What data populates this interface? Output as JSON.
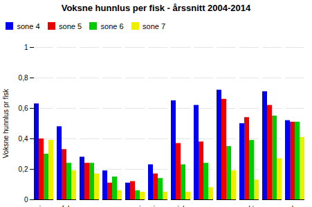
{
  "chart_data": {
    "type": "bar",
    "title": "Voksne hunnlus per fisk - årssnitt 2004-2014",
    "ylabel": "Voksne hunnlus pr fisk",
    "categories": [
      "jan",
      "feb",
      "mar",
      "apr",
      "mai",
      "jun",
      "jul",
      "aug",
      "sep",
      "okt",
      "nov",
      "des"
    ],
    "series": [
      {
        "name": "sone 4",
        "color": "#0000EE",
        "values": [
          0.63,
          0.48,
          0.28,
          0.19,
          0.11,
          0.23,
          0.65,
          0.62,
          0.72,
          0.5,
          0.71,
          0.52
        ]
      },
      {
        "name": "sone 5",
        "color": "#EE0000",
        "values": [
          0.4,
          0.33,
          0.24,
          0.11,
          0.12,
          0.17,
          0.37,
          0.38,
          0.66,
          0.54,
          0.62,
          0.51
        ]
      },
      {
        "name": "sone 6",
        "color": "#00CC00",
        "values": [
          0.3,
          0.24,
          0.24,
          0.15,
          0.06,
          0.14,
          0.23,
          0.24,
          0.35,
          0.39,
          0.55,
          0.51
        ]
      },
      {
        "name": "sone 7",
        "color": "#EEEE00",
        "values": [
          0.39,
          0.19,
          0.17,
          0.06,
          0.05,
          0.05,
          0.05,
          0.08,
          0.19,
          0.13,
          0.27,
          0.41
        ]
      }
    ],
    "ylim": [
      0,
      1
    ],
    "yticks": [
      0,
      {
        "value": 0.2,
        "label": "0,2"
      },
      {
        "value": 0.4,
        "label": "0,4"
      },
      {
        "value": 0.6,
        "label": "0,6"
      },
      {
        "value": 0.8,
        "label": "0,8"
      },
      1
    ],
    "grid": true,
    "legend": "upper left"
  }
}
